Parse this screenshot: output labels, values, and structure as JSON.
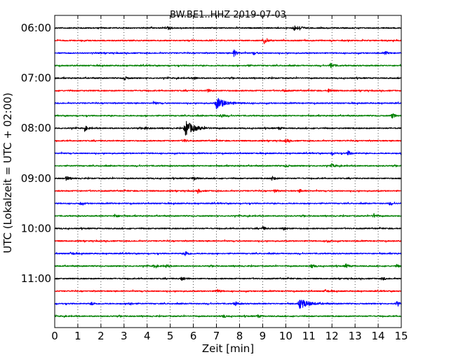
{
  "chart_data": {
    "type": "line",
    "title": "BW.BE1..HHZ 2019-07-03",
    "xlabel": "Zeit  [min]",
    "ylabel": "UTC (Lokalzeit = UTC + 02:00)",
    "xlim": [
      0,
      15
    ],
    "x_ticks": [
      "0",
      "1",
      "2",
      "3",
      "4",
      "5",
      "6",
      "7",
      "8",
      "9",
      "10",
      "11",
      "12",
      "13",
      "14",
      "15"
    ],
    "y_tick_labels": [
      "06:00",
      "07:00",
      "08:00",
      "09:00",
      "10:00",
      "11:00"
    ],
    "grid": "vertical dotted",
    "colors": [
      "#000000",
      "#ff0000",
      "#0000ff",
      "#008000"
    ],
    "trace_minutes": 15,
    "traces": [
      {
        "start": "06:00",
        "color": "#000000",
        "events": [
          {
            "x": 4.9,
            "amp": 0.25
          },
          {
            "x": 10.35,
            "amp": 0.45
          },
          {
            "x": 10.6,
            "amp": 0.3
          }
        ]
      },
      {
        "start": "06:15",
        "color": "#ff0000",
        "events": [
          {
            "x": 9.05,
            "amp": 0.55
          }
        ]
      },
      {
        "start": "06:30",
        "color": "#0000ff",
        "events": [
          {
            "x": 7.75,
            "amp": 0.5
          },
          {
            "x": 8.6,
            "amp": 0.2
          },
          {
            "x": 14.3,
            "amp": 0.2
          }
        ]
      },
      {
        "start": "06:45",
        "color": "#008000",
        "events": [
          {
            "x": 11.95,
            "amp": 0.45
          },
          {
            "x": 8.3,
            "amp": 0.15
          }
        ]
      },
      {
        "start": "07:00",
        "color": "#000000",
        "events": [
          {
            "x": 3.0,
            "amp": 0.3
          },
          {
            "x": 6.0,
            "amp": 0.2
          }
        ]
      },
      {
        "start": "07:15",
        "color": "#ff0000",
        "events": [
          {
            "x": 6.6,
            "amp": 0.25
          },
          {
            "x": 9.9,
            "amp": 0.2
          },
          {
            "x": 11.85,
            "amp": 0.3
          }
        ]
      },
      {
        "start": "07:30",
        "color": "#0000ff",
        "events": [
          {
            "x": 7.0,
            "amp": 0.85
          },
          {
            "x": 4.3,
            "amp": 0.2
          }
        ]
      },
      {
        "start": "07:45",
        "color": "#008000",
        "events": [
          {
            "x": 7.2,
            "amp": 0.3
          },
          {
            "x": 14.6,
            "amp": 0.35
          }
        ]
      },
      {
        "start": "08:00",
        "color": "#000000",
        "events": [
          {
            "x": 5.65,
            "amp": 1.15
          },
          {
            "x": 1.3,
            "amp": 0.35
          },
          {
            "x": 3.9,
            "amp": 0.25
          },
          {
            "x": 9.7,
            "amp": 0.2
          }
        ]
      },
      {
        "start": "08:15",
        "color": "#ff0000",
        "events": [
          {
            "x": 10.0,
            "amp": 0.25
          },
          {
            "x": 5.6,
            "amp": 0.2
          }
        ]
      },
      {
        "start": "08:30",
        "color": "#0000ff",
        "events": [
          {
            "x": 12.7,
            "amp": 0.35
          },
          {
            "x": 12.0,
            "amp": 0.2
          }
        ]
      },
      {
        "start": "08:45",
        "color": "#008000",
        "events": [
          {
            "x": 10.0,
            "amp": 0.2
          },
          {
            "x": 12.0,
            "amp": 0.25
          }
        ]
      },
      {
        "start": "09:00",
        "color": "#000000",
        "events": [
          {
            "x": 0.5,
            "amp": 0.3
          },
          {
            "x": 6.0,
            "amp": 0.3
          },
          {
            "x": 9.4,
            "amp": 0.3
          }
        ]
      },
      {
        "start": "09:15",
        "color": "#ff0000",
        "events": [
          {
            "x": 6.2,
            "amp": 0.25
          },
          {
            "x": 9.5,
            "amp": 0.2
          },
          {
            "x": 10.6,
            "amp": 0.2
          }
        ]
      },
      {
        "start": "09:30",
        "color": "#0000ff",
        "events": [
          {
            "x": 1.1,
            "amp": 0.2
          },
          {
            "x": 14.5,
            "amp": 0.2
          }
        ]
      },
      {
        "start": "09:45",
        "color": "#008000",
        "events": [
          {
            "x": 2.6,
            "amp": 0.3
          },
          {
            "x": 13.8,
            "amp": 0.35
          }
        ]
      },
      {
        "start": "10:00",
        "color": "#000000",
        "events": [
          {
            "x": 9.0,
            "amp": 0.25
          },
          {
            "x": 9.9,
            "amp": 0.25
          }
        ]
      },
      {
        "start": "10:15",
        "color": "#ff0000",
        "events": [
          {
            "x": 11.8,
            "amp": 0.2
          }
        ]
      },
      {
        "start": "10:30",
        "color": "#0000ff",
        "events": [
          {
            "x": 5.65,
            "amp": 0.4
          },
          {
            "x": 0.7,
            "amp": 0.2
          }
        ]
      },
      {
        "start": "10:45",
        "color": "#008000",
        "events": [
          {
            "x": 11.1,
            "amp": 0.3
          },
          {
            "x": 12.6,
            "amp": 0.3
          },
          {
            "x": 4.3,
            "amp": 0.2
          },
          {
            "x": 4.8,
            "amp": 0.2
          },
          {
            "x": 14.8,
            "amp": 0.2
          }
        ]
      },
      {
        "start": "11:00",
        "color": "#000000",
        "events": [
          {
            "x": 5.5,
            "amp": 0.35
          },
          {
            "x": 14.2,
            "amp": 0.2
          }
        ]
      },
      {
        "start": "11:15",
        "color": "#ff0000",
        "events": [
          {
            "x": 7.0,
            "amp": 0.3
          },
          {
            "x": 11.7,
            "amp": 0.2
          }
        ]
      },
      {
        "start": "11:30",
        "color": "#0000ff",
        "events": [
          {
            "x": 10.6,
            "amp": 0.75
          },
          {
            "x": 3.2,
            "amp": 0.3
          },
          {
            "x": 7.8,
            "amp": 0.3
          },
          {
            "x": 1.6,
            "amp": 0.2
          },
          {
            "x": 14.8,
            "amp": 0.3
          }
        ]
      },
      {
        "start": "11:45",
        "color": "#008000",
        "events": [
          {
            "x": 7.3,
            "amp": 0.2
          },
          {
            "x": 8.8,
            "amp": 0.2
          }
        ]
      }
    ]
  }
}
